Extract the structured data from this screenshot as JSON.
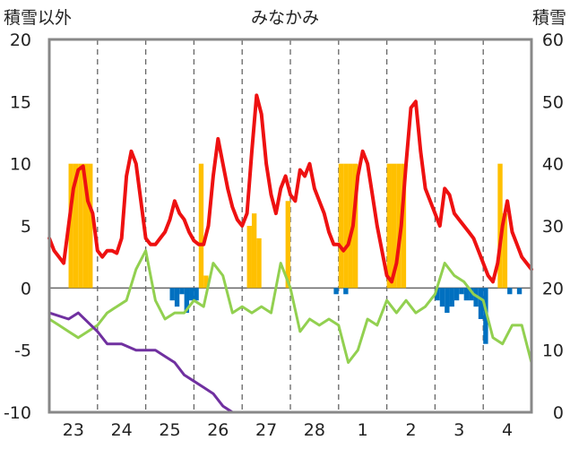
{
  "chart_data": {
    "type": "line",
    "title": "みなかみ",
    "y_left_label": "積雪以外",
    "y_right_label": "積雪",
    "y_left_range": [
      -10,
      20
    ],
    "y_left_ticks": [
      "20",
      "15",
      "10",
      "5",
      "0",
      "-5",
      "-10"
    ],
    "y_right_range": [
      0,
      60
    ],
    "y_right_ticks": [
      "60",
      "50",
      "40",
      "30",
      "20",
      "10",
      "0"
    ],
    "x_range": [
      0,
      10
    ],
    "x_tick_labels": [
      "23",
      "24",
      "25",
      "26",
      "27",
      "28",
      "1",
      "2",
      "3",
      "4"
    ],
    "grid": "vertical dashed day separators",
    "colors": {
      "red_line": "#ee1111",
      "green_line": "#92d050",
      "purple_line": "#7030a0",
      "orange_bar": "#ffc000",
      "blue_bar": "#0070c0"
    },
    "series": [
      {
        "color": "#ee1111",
        "axis": "left",
        "kind": "line",
        "x": [
          0,
          0.1,
          0.2,
          0.3,
          0.4,
          0.5,
          0.6,
          0.7,
          0.8,
          0.9,
          1.0,
          1.1,
          1.2,
          1.3,
          1.4,
          1.5,
          1.6,
          1.7,
          1.8,
          1.9,
          2.0,
          2.1,
          2.2,
          2.3,
          2.4,
          2.5,
          2.6,
          2.7,
          2.8,
          2.9,
          3.0,
          3.1,
          3.2,
          3.3,
          3.4,
          3.5,
          3.6,
          3.7,
          3.8,
          3.9,
          4.0,
          4.1,
          4.2,
          4.3,
          4.4,
          4.5,
          4.6,
          4.7,
          4.8,
          4.9,
          5.0,
          5.1,
          5.2,
          5.3,
          5.4,
          5.5,
          5.6,
          5.7,
          5.8,
          5.9,
          6.0,
          6.1,
          6.2,
          6.3,
          6.4,
          6.5,
          6.6,
          6.7,
          6.8,
          6.9,
          7.0,
          7.1,
          7.2,
          7.3,
          7.4,
          7.5,
          7.6,
          7.7,
          7.8,
          7.9,
          8.0,
          8.1,
          8.2,
          8.3,
          8.4,
          8.5,
          8.6,
          8.7,
          8.8,
          8.9,
          9.0,
          9.1,
          9.2,
          9.3,
          9.4,
          9.5,
          9.6,
          9.7,
          9.8,
          9.9,
          10.0
        ],
        "y": [
          4,
          3,
          2.5,
          2,
          5,
          8,
          9.5,
          9.8,
          7,
          6,
          3,
          2.5,
          3,
          3,
          2.8,
          4,
          9,
          11,
          10,
          7,
          4,
          3.5,
          3.5,
          4,
          4.5,
          5.5,
          7,
          6,
          5.5,
          4.5,
          3.8,
          3.5,
          3.5,
          5,
          9,
          12,
          10,
          8,
          6.5,
          5.5,
          5,
          6,
          11,
          15.5,
          14,
          10,
          7.5,
          6,
          8,
          9,
          7.5,
          7,
          9.5,
          9,
          10,
          8,
          7,
          6,
          4.5,
          3.5,
          3.5,
          3,
          3.5,
          5,
          9,
          11,
          10,
          7.5,
          5,
          3,
          1,
          0.5,
          2,
          5,
          10,
          14.5,
          15,
          11,
          8,
          7,
          6,
          5,
          8,
          7.5,
          6,
          5.5,
          5,
          4.5,
          4,
          3,
          2,
          1,
          0.5,
          2,
          5,
          7,
          4.5,
          3.5,
          2.5,
          2,
          1.5
        ]
      },
      {
        "color": "#92d050",
        "axis": "left",
        "kind": "line",
        "x": [
          0,
          0.2,
          0.4,
          0.6,
          0.8,
          1.0,
          1.2,
          1.4,
          1.6,
          1.8,
          2.0,
          2.2,
          2.4,
          2.6,
          2.8,
          3.0,
          3.2,
          3.4,
          3.6,
          3.8,
          4.0,
          4.2,
          4.4,
          4.6,
          4.8,
          5.0,
          5.2,
          5.4,
          5.6,
          5.8,
          6.0,
          6.2,
          6.4,
          6.6,
          6.8,
          7.0,
          7.2,
          7.4,
          7.6,
          7.8,
          8.0,
          8.2,
          8.4,
          8.6,
          8.8,
          9.0,
          9.2,
          9.4,
          9.6,
          9.8,
          10.0
        ],
        "y": [
          -2.5,
          -3,
          -3.5,
          -4,
          -3.5,
          -3,
          -2,
          -1.5,
          -1,
          1.5,
          3,
          -1,
          -2.5,
          -2,
          -2,
          -1,
          -1.5,
          2,
          1,
          -2,
          -1.5,
          -2,
          -1.5,
          -2,
          2,
          0,
          -3.5,
          -2.5,
          -3,
          -2.5,
          -3,
          -6,
          -5,
          -2.5,
          -3,
          -1,
          -2,
          -1,
          -2,
          -1.5,
          -0.5,
          2,
          1,
          0.5,
          -0.5,
          -1,
          -4,
          -4.5,
          -3,
          -3,
          -6
        ]
      },
      {
        "color": "#7030a0",
        "axis": "left",
        "kind": "line",
        "x": [
          0,
          0.4,
          0.6,
          1.0,
          1.2,
          1.5,
          1.8,
          2.2,
          2.4,
          2.6,
          2.8,
          3.0,
          3.2,
          3.4,
          3.6,
          3.8,
          10.0
        ],
        "y": [
          -2,
          -2.5,
          -2,
          -3.5,
          -4.5,
          -4.5,
          -5,
          -5,
          -5.5,
          -6,
          -7,
          -7.5,
          -8,
          -8.5,
          -9.5,
          -10,
          -10
        ]
      },
      {
        "color": "#ffc000",
        "axis": "left",
        "kind": "bar",
        "x": [
          0.4,
          0.5,
          0.6,
          0.7,
          0.8,
          3.1,
          3.2,
          4.1,
          4.2,
          4.3,
          4.9,
          6.0,
          6.1,
          6.2,
          6.3,
          7.0,
          7.1,
          7.2,
          7.3,
          9.3,
          9.4
        ],
        "y": [
          10,
          10,
          10,
          10,
          10,
          10,
          1,
          5,
          6,
          4,
          7,
          10,
          10,
          10,
          10,
          10,
          10,
          10,
          10,
          10,
          6
        ]
      },
      {
        "color": "#0070c0",
        "axis": "left",
        "kind": "bar",
        "x": [
          2.5,
          2.6,
          2.7,
          2.8,
          2.9,
          3.0,
          5.9,
          6.1,
          8.0,
          8.1,
          8.2,
          8.3,
          8.4,
          8.5,
          8.6,
          8.7,
          8.8,
          8.9,
          9.0,
          9.5,
          9.7
        ],
        "y": [
          -1,
          -1.5,
          -0.5,
          -2,
          -1,
          -1,
          -0.5,
          -0.5,
          -1,
          -1.5,
          -2,
          -1.5,
          -1,
          -0.5,
          -1,
          -1,
          -1.5,
          -2.5,
          -4.5,
          -0.5,
          -0.5
        ]
      }
    ]
  }
}
